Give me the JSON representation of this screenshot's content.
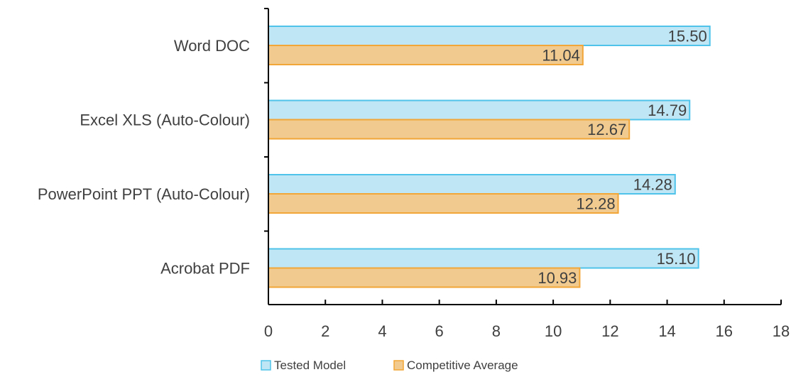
{
  "chart_data": {
    "type": "bar",
    "orientation": "horizontal",
    "categories": [
      "Word DOC",
      "Excel XLS (Auto-Colour)",
      "PowerPoint PPT (Auto-Colour)",
      "Acrobat PDF"
    ],
    "series": [
      {
        "name": "Tested Model",
        "values": [
          15.5,
          14.79,
          14.28,
          15.1
        ],
        "fill": "#bfe6f4",
        "stroke": "#4fc3ea"
      },
      {
        "name": "Competitive Average",
        "values": [
          11.04,
          12.67,
          12.28,
          10.93
        ],
        "fill": "#f0ca8e",
        "stroke": "#f2a637"
      }
    ],
    "data_labels": [
      [
        "15.50",
        "14.79",
        "14.28",
        "15.10"
      ],
      [
        "11.04",
        "12.67",
        "12.28",
        "10.93"
      ]
    ],
    "xlim": [
      0,
      18
    ],
    "xticks": [
      0,
      2,
      4,
      6,
      8,
      10,
      12,
      14,
      16,
      18
    ],
    "xtick_labels": [
      "0",
      "2",
      "4",
      "6",
      "8",
      "10",
      "12",
      "14",
      "16",
      "18"
    ],
    "grid": false,
    "legend": "bottom",
    "axis_color": "#000000"
  }
}
